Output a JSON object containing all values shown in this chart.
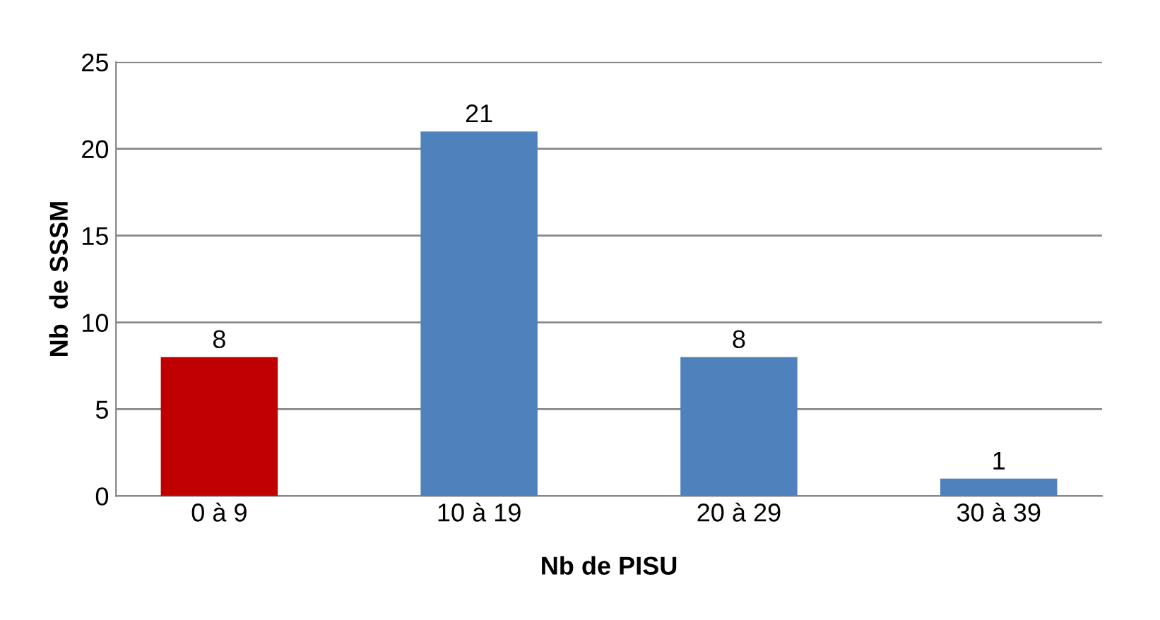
{
  "chart_data": {
    "type": "bar",
    "xlabel": "Nb de PISU",
    "ylabel": "Nb  de SSSM",
    "categories": [
      "0 à 9",
      "10 à 19",
      "20 à 29",
      "30 à 39"
    ],
    "values": [
      8,
      21,
      8,
      1
    ],
    "colors": [
      "#c00000",
      "#4f81bd",
      "#4f81bd",
      "#4f81bd"
    ],
    "ylim": [
      0,
      25
    ],
    "yticks": [
      0,
      5,
      10,
      15,
      20,
      25
    ],
    "grid": "y",
    "data_labels": true,
    "legend": false
  }
}
